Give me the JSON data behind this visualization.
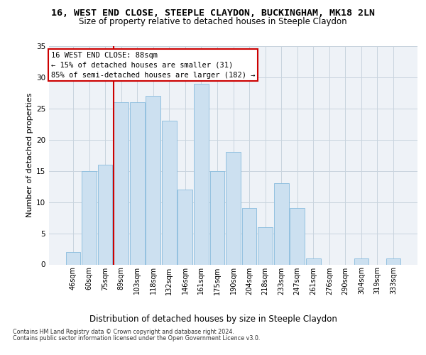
{
  "title1": "16, WEST END CLOSE, STEEPLE CLAYDON, BUCKINGHAM, MK18 2LN",
  "title2": "Size of property relative to detached houses in Steeple Claydon",
  "xlabel": "Distribution of detached houses by size in Steeple Claydon",
  "ylabel": "Number of detached properties",
  "bins": [
    "46sqm",
    "60sqm",
    "75sqm",
    "89sqm",
    "103sqm",
    "118sqm",
    "132sqm",
    "146sqm",
    "161sqm",
    "175sqm",
    "190sqm",
    "204sqm",
    "218sqm",
    "233sqm",
    "247sqm",
    "261sqm",
    "276sqm",
    "290sqm",
    "304sqm",
    "319sqm",
    "333sqm"
  ],
  "values": [
    2,
    15,
    16,
    26,
    26,
    27,
    23,
    12,
    29,
    15,
    18,
    9,
    6,
    13,
    9,
    1,
    0,
    0,
    1,
    0,
    1
  ],
  "bar_color": "#cce0f0",
  "bar_edge_color": "#88bbdd",
  "vline_x_index": 3,
  "vline_color": "#cc0000",
  "ylim": [
    0,
    35
  ],
  "yticks": [
    0,
    5,
    10,
    15,
    20,
    25,
    30,
    35
  ],
  "annotation_title": "16 WEST END CLOSE: 88sqm",
  "annotation_line1": "← 15% of detached houses are smaller (31)",
  "annotation_line2": "85% of semi-detached houses are larger (182) →",
  "annotation_box_facecolor": "#ffffff",
  "annotation_box_edgecolor": "#cc0000",
  "footer1": "Contains HM Land Registry data © Crown copyright and database right 2024.",
  "footer2": "Contains public sector information licensed under the Open Government Licence v3.0.",
  "bg_color": "#eef2f7",
  "grid_color": "#c8d4de",
  "title1_fontsize": 9.5,
  "title2_fontsize": 8.5,
  "ylabel_fontsize": 8,
  "xlabel_fontsize": 8.5,
  "tick_fontsize": 7,
  "footer_fontsize": 5.8,
  "annotation_fontsize": 7.5
}
